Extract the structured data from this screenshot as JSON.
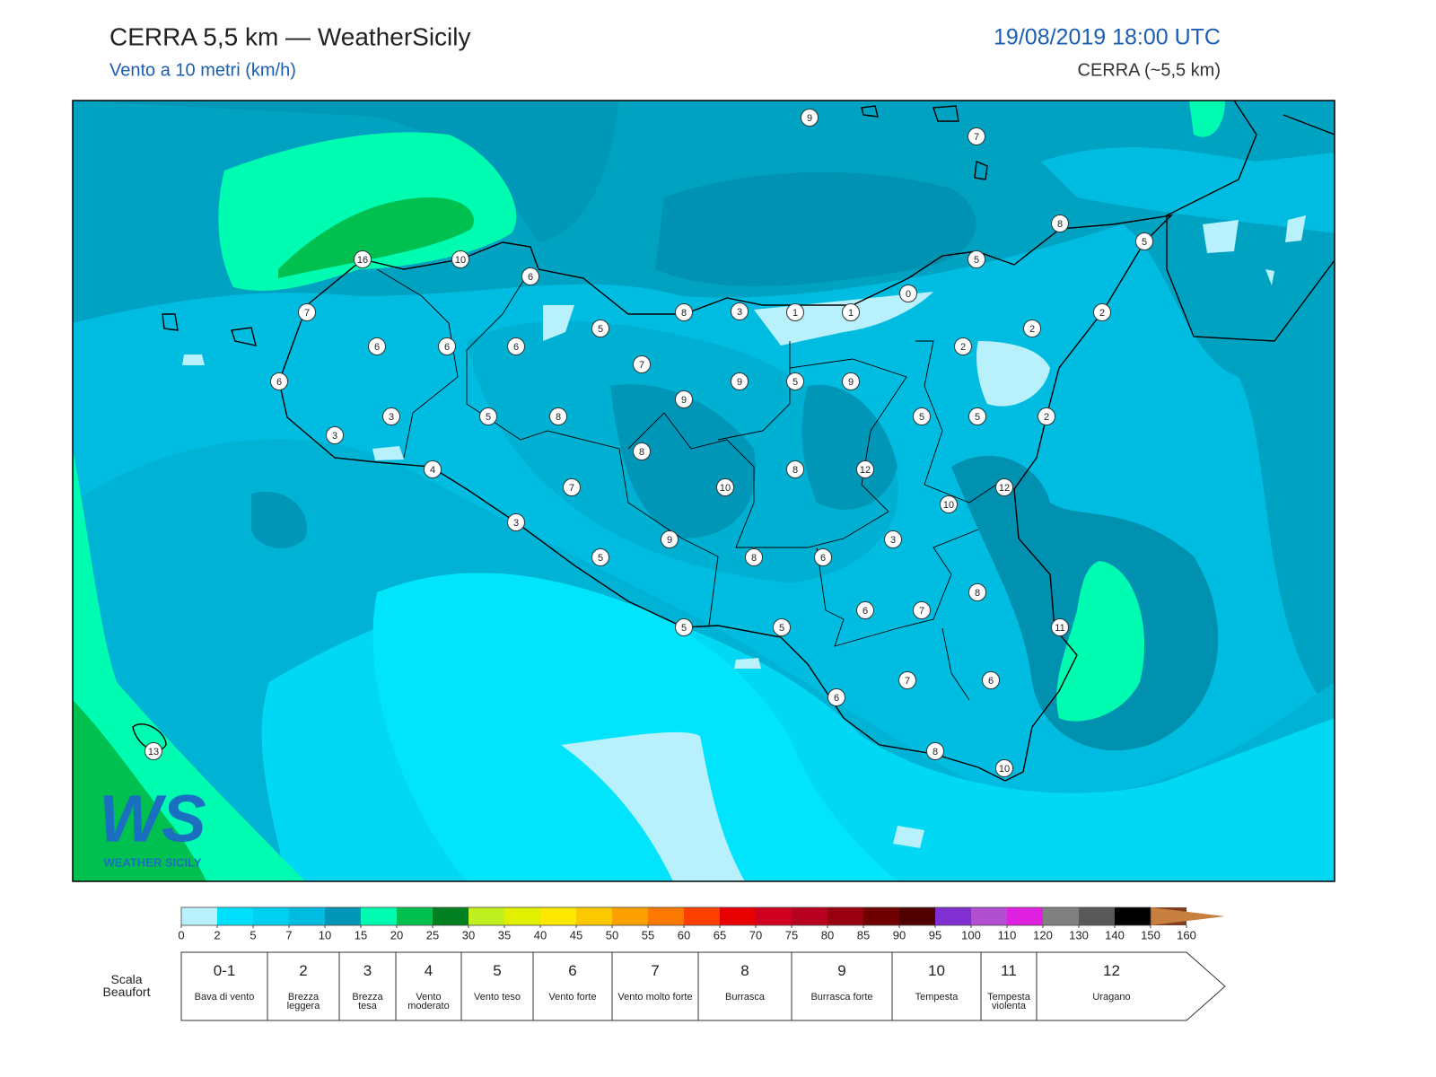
{
  "header": {
    "title": "CERRA 5,5 km — WeatherSicily",
    "subtitle": "Vento a 10 metri (km/h)",
    "datetime": "19/08/2019 18:00 UTC",
    "model": "CERRA (~5,5 km)"
  },
  "map": {
    "stations": [
      9,
      7,
      8,
      5,
      16,
      10,
      6,
      5,
      0,
      7,
      8,
      3,
      1,
      1,
      2,
      5,
      2,
      6,
      6,
      6,
      2,
      7,
      6,
      9,
      5,
      9,
      9,
      3,
      5,
      8,
      5,
      5,
      2,
      3,
      8,
      4,
      8,
      12,
      7,
      10,
      12,
      10,
      3,
      9,
      3,
      5,
      8,
      6,
      8,
      6,
      7,
      11,
      5,
      5,
      7,
      6,
      6,
      8,
      10,
      13
    ],
    "logo": {
      "letters": "WS",
      "text": "WEATHER SICILY"
    }
  },
  "colorbar": {
    "ticks": [
      0,
      2,
      5,
      7,
      10,
      15,
      20,
      25,
      30,
      35,
      40,
      45,
      50,
      55,
      60,
      65,
      70,
      75,
      80,
      85,
      90,
      95,
      100,
      110,
      120,
      130,
      140,
      150,
      160
    ],
    "colors": [
      "#b8f0fc",
      "#00e0fc",
      "#00d0f0",
      "#00bce0",
      "#0096b8",
      "#00fcb0",
      "#00c050",
      "#008020",
      "#c0f020",
      "#e0f000",
      "#fce800",
      "#fcc800",
      "#fca000",
      "#fc7800",
      "#fc4000",
      "#e80000",
      "#d00020",
      "#b80020",
      "#980010",
      "#700000",
      "#500000",
      "#8030d0",
      "#b050d0",
      "#e020e0",
      "#808080",
      "#585858",
      "#000000",
      "#804020",
      "#c88040"
    ]
  },
  "beaufort": {
    "title": "Scala Beaufort",
    "levels": [
      {
        "force": "0-1",
        "label": "Bava di vento"
      },
      {
        "force": "2",
        "label": "Brezza leggera"
      },
      {
        "force": "3",
        "label": "Brezza tesa"
      },
      {
        "force": "4",
        "label": "Vento moderato"
      },
      {
        "force": "5",
        "label": "Vento teso"
      },
      {
        "force": "6",
        "label": "Vento forte"
      },
      {
        "force": "7",
        "label": "Vento molto forte"
      },
      {
        "force": "8",
        "label": "Burrasca"
      },
      {
        "force": "9",
        "label": "Burrasca forte"
      },
      {
        "force": "10",
        "label": "Tempesta"
      },
      {
        "force": "11",
        "label": "Tempesta violenta"
      },
      {
        "force": "12",
        "label": "Uragano"
      }
    ]
  }
}
